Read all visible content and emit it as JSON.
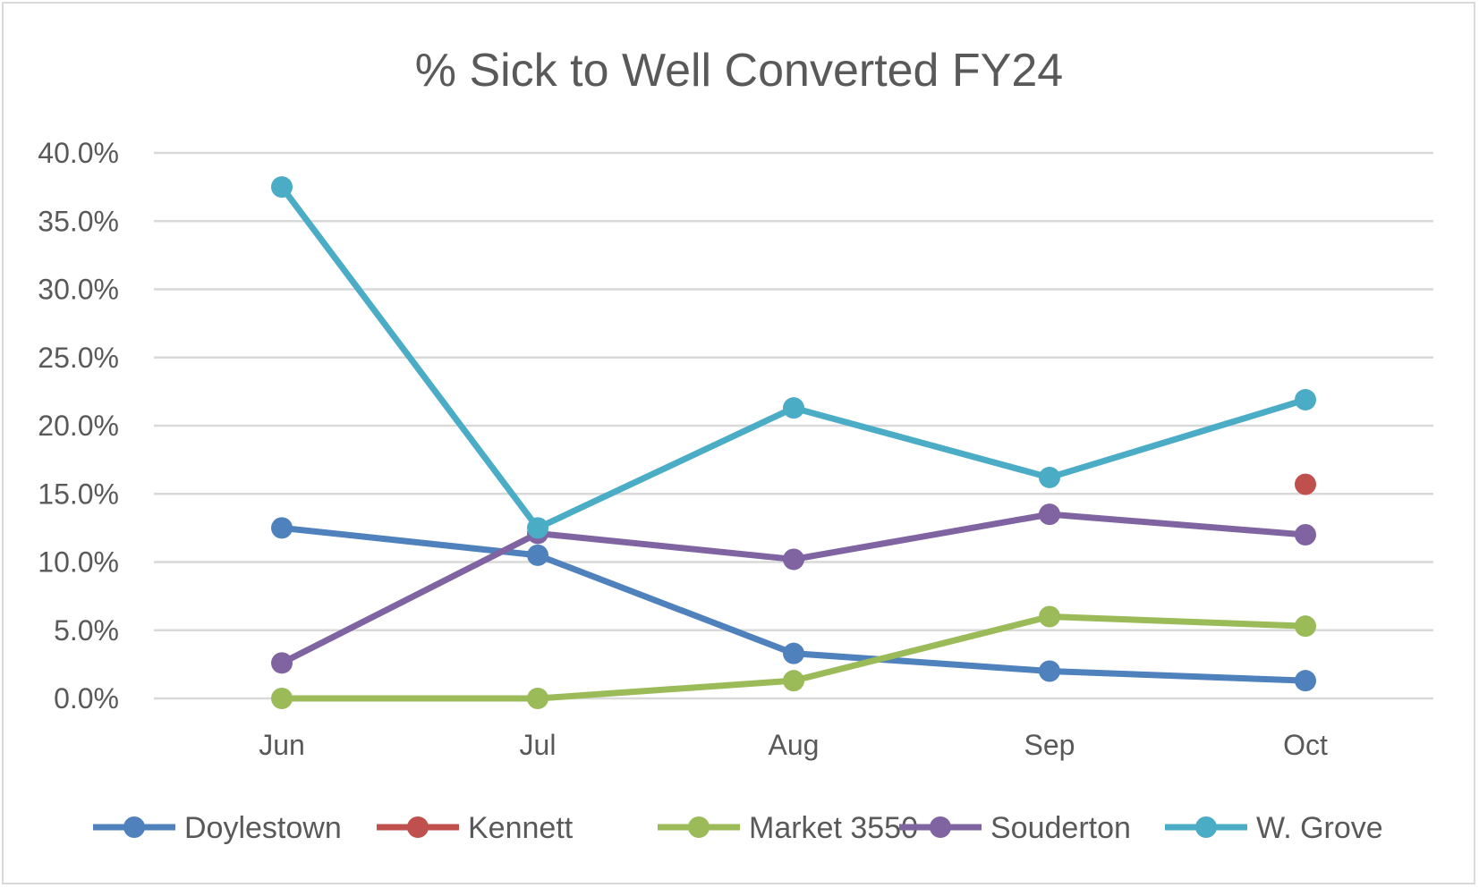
{
  "chart_data": {
    "type": "line",
    "title": "% Sick to Well Converted FY24",
    "xlabel": "",
    "ylabel": "",
    "categories": [
      "Jun",
      "Jul",
      "Aug",
      "Sep",
      "Oct"
    ],
    "ylim": [
      0,
      40
    ],
    "yticks": [
      "0.0%",
      "5.0%",
      "10.0%",
      "15.0%",
      "20.0%",
      "25.0%",
      "30.0%",
      "35.0%",
      "40.0%"
    ],
    "ytick_values": [
      0,
      5,
      10,
      15,
      20,
      25,
      30,
      35,
      40
    ],
    "grid": true,
    "legend_position": "bottom",
    "series": [
      {
        "name": "Doylestown",
        "color": "#4f81bd",
        "values": [
          12.5,
          10.5,
          3.3,
          2.0,
          1.3
        ]
      },
      {
        "name": "Kennett",
        "color": "#c0504d",
        "values": [
          null,
          null,
          null,
          null,
          15.7
        ]
      },
      {
        "name": "Market 3550",
        "color": "#9bbb59",
        "values": [
          0.0,
          0.0,
          1.3,
          6.0,
          5.3
        ]
      },
      {
        "name": "Souderton",
        "color": "#8064a2",
        "values": [
          2.6,
          12.1,
          10.2,
          13.5,
          12.0
        ]
      },
      {
        "name": "W. Grove",
        "color": "#4bacc6",
        "values": [
          37.5,
          12.5,
          21.3,
          16.2,
          21.9
        ]
      }
    ]
  }
}
